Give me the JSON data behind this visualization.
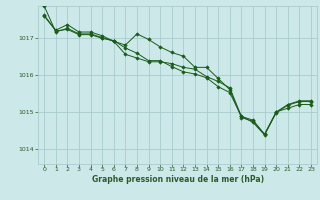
{
  "title": "Graphe pression niveau de la mer (hPa)",
  "background_color": "#cce8e8",
  "grid_color": "#aacccc",
  "line_color": "#1a5c1a",
  "tick_color": "#2a5c2a",
  "ylim": [
    1013.6,
    1017.85
  ],
  "xlim": [
    -0.5,
    23.5
  ],
  "yticks": [
    1014,
    1015,
    1016,
    1017
  ],
  "xticks": [
    0,
    1,
    2,
    3,
    4,
    5,
    6,
    7,
    8,
    9,
    10,
    11,
    12,
    13,
    14,
    15,
    16,
    17,
    18,
    19,
    20,
    21,
    22,
    23
  ],
  "series": [
    [
      1017.6,
      1017.2,
      1017.35,
      1017.15,
      1017.15,
      1017.05,
      1016.9,
      1016.8,
      1017.1,
      1016.95,
      1016.75,
      1016.6,
      1016.5,
      1016.2,
      1016.2,
      1015.9,
      1015.6,
      1014.85,
      1014.75,
      1014.4,
      1015.0,
      1015.1,
      1015.2,
      1015.2
    ],
    [
      1017.85,
      1017.15,
      1017.25,
      1017.1,
      1017.1,
      1017.0,
      1016.9,
      1016.55,
      1016.45,
      1016.35,
      1016.35,
      1016.3,
      1016.2,
      1016.15,
      1015.95,
      1015.82,
      1015.65,
      1014.88,
      1014.78,
      1014.4,
      1015.0,
      1015.2,
      1015.3,
      1015.3
    ],
    [
      1017.58,
      1017.18,
      1017.22,
      1017.08,
      1017.08,
      1016.98,
      1016.92,
      1016.72,
      1016.58,
      1016.38,
      1016.38,
      1016.22,
      1016.08,
      1016.02,
      1015.92,
      1015.68,
      1015.52,
      1014.88,
      1014.72,
      1014.38,
      1014.98,
      1015.18,
      1015.28,
      1015.28
    ]
  ]
}
